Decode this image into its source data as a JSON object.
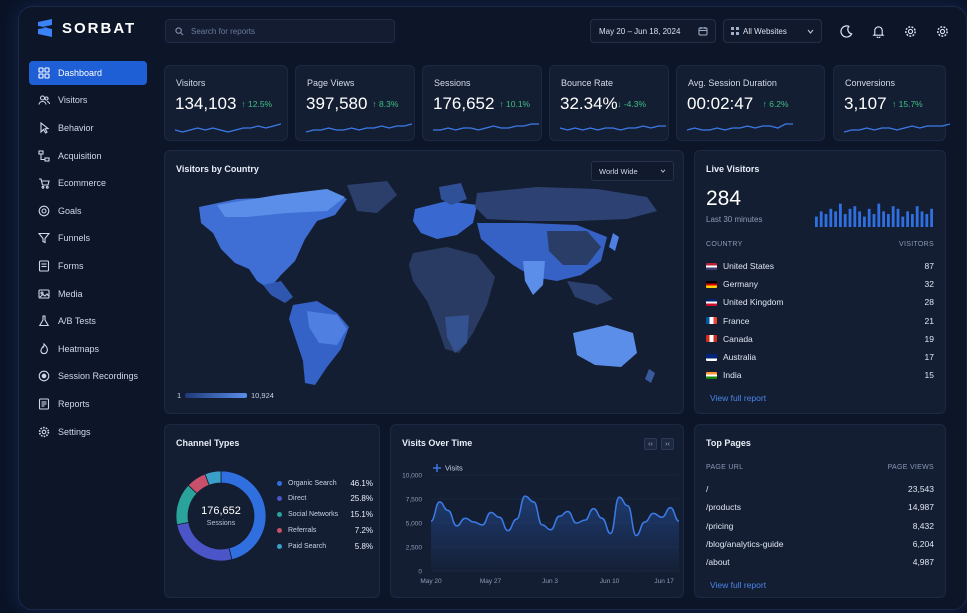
{
  "app": {
    "name": "SORBAT"
  },
  "search": {
    "placeholder": "Search for reports"
  },
  "header": {
    "date_range": "May 20 – Jun 18, 2024",
    "website_select": "All Websites",
    "icons": [
      "moon-icon",
      "bell-icon",
      "gear-icon",
      "gear-icon"
    ]
  },
  "sidebar": {
    "items": [
      {
        "label": "Dashboard",
        "icon": "grid-icon",
        "active": true
      },
      {
        "label": "Visitors",
        "icon": "users-icon"
      },
      {
        "label": "Behavior",
        "icon": "pointer-icon"
      },
      {
        "label": "Acquisition",
        "icon": "funnel-nodes-icon"
      },
      {
        "label": "Ecommerce",
        "icon": "cart-icon"
      },
      {
        "label": "Goals",
        "icon": "target-icon"
      },
      {
        "label": "Funnels",
        "icon": "funnel-icon"
      },
      {
        "label": "Forms",
        "icon": "form-icon"
      },
      {
        "label": "Media",
        "icon": "media-icon"
      },
      {
        "label": "A/B Tests",
        "icon": "flask-icon"
      },
      {
        "label": "Heatmaps",
        "icon": "flame-icon"
      },
      {
        "label": "Session Recordings",
        "icon": "record-icon"
      },
      {
        "label": "Reports",
        "icon": "report-icon"
      },
      {
        "label": "Settings",
        "icon": "gear-icon"
      }
    ]
  },
  "kpis": [
    {
      "label": "Visitors",
      "value": "134,103",
      "delta": "12.5%",
      "direction": "up"
    },
    {
      "label": "Page Views",
      "value": "397,580",
      "delta": "8.3%",
      "direction": "up"
    },
    {
      "label": "Sessions",
      "value": "176,652",
      "delta": "10.1%",
      "direction": "up"
    },
    {
      "label": "Bounce Rate",
      "value": "32.34%",
      "delta": "-4.3%",
      "direction": "down"
    },
    {
      "label": "Avg. Session Duration",
      "value": "00:02:47",
      "delta": "6.2%",
      "direction": "up"
    },
    {
      "label": "Conversions",
      "value": "3,107",
      "delta": "15.7%",
      "direction": "up"
    }
  ],
  "map": {
    "title": "Visitors by Country",
    "region_select": "World Wide",
    "scale_min": "1",
    "scale_max": "10,924"
  },
  "live": {
    "title": "Live Visitors",
    "count": "284",
    "period": "Last 30 minutes",
    "col_country": "COUNTRY",
    "col_visitors": "VISITORS",
    "rows": [
      {
        "country": "United States",
        "visitors": "87",
        "flag": "us"
      },
      {
        "country": "Germany",
        "visitors": "32",
        "flag": "de"
      },
      {
        "country": "United Kingdom",
        "visitors": "28",
        "flag": "uk"
      },
      {
        "country": "France",
        "visitors": "21",
        "flag": "fr"
      },
      {
        "country": "Canada",
        "visitors": "19",
        "flag": "ca"
      },
      {
        "country": "Australia",
        "visitors": "17",
        "flag": "au"
      },
      {
        "country": "India",
        "visitors": "15",
        "flag": "in"
      }
    ],
    "link": "View full report"
  },
  "channels": {
    "title": "Channel Types",
    "total": "176,652",
    "total_label": "Sessions",
    "items": [
      {
        "label": "Organic Search",
        "pct": "46.1%",
        "value": 46.1,
        "color": "#2f6fe0"
      },
      {
        "label": "Direct",
        "pct": "25.8%",
        "value": 25.8,
        "color": "#4b55c8"
      },
      {
        "label": "Social Networks",
        "pct": "15.1%",
        "value": 15.1,
        "color": "#2aa39a"
      },
      {
        "label": "Referrals",
        "pct": "7.2%",
        "value": 7.2,
        "color": "#c8506a"
      },
      {
        "label": "Paid Search",
        "pct": "5.8%",
        "value": 5.8,
        "color": "#3aa0c8"
      }
    ]
  },
  "visits_chart": {
    "title": "Visits Over Time",
    "legend": "Visits"
  },
  "chart_data": {
    "type": "area",
    "title": "Visits Over Time",
    "series": [
      {
        "name": "Visits",
        "values": [
          5200,
          7200,
          6300,
          4700,
          5500,
          5100,
          4800,
          6100,
          5600,
          4200,
          5400,
          7800,
          7200,
          4800,
          4300,
          5700,
          6200,
          5000,
          5300,
          6500,
          5500,
          3900,
          7700,
          6800,
          3700,
          5100,
          6000,
          5600,
          6600,
          5200
        ]
      }
    ],
    "x_ticks": [
      "May 20",
      "May 27",
      "Jun 3",
      "Jun 10",
      "Jun 17"
    ],
    "y_ticks": [
      "0",
      "2,500",
      "5,000",
      "7,500",
      "10,000"
    ],
    "ylim": [
      0,
      10000
    ],
    "grid": true,
    "legend_position": "top-left"
  },
  "top_pages": {
    "title": "Top Pages",
    "col_url": "PAGE URL",
    "col_views": "PAGE VIEWS",
    "rows": [
      {
        "url": "/",
        "views": "23,543"
      },
      {
        "url": "/products",
        "views": "14,987"
      },
      {
        "url": "/pricing",
        "views": "8,432"
      },
      {
        "url": "/blog/analytics-guide",
        "views": "6,204"
      },
      {
        "url": "/about",
        "views": "4,987"
      }
    ],
    "link": "View full report"
  },
  "live_bars": [
    4,
    6,
    5,
    7,
    6,
    9,
    5,
    7,
    8,
    6,
    4,
    7,
    5,
    9,
    6,
    5,
    8,
    7,
    4,
    6,
    5,
    8,
    6,
    5,
    7
  ],
  "colors": {
    "accent": "#1f5fd6",
    "up": "#3fbf86",
    "panel": "#141e33"
  }
}
